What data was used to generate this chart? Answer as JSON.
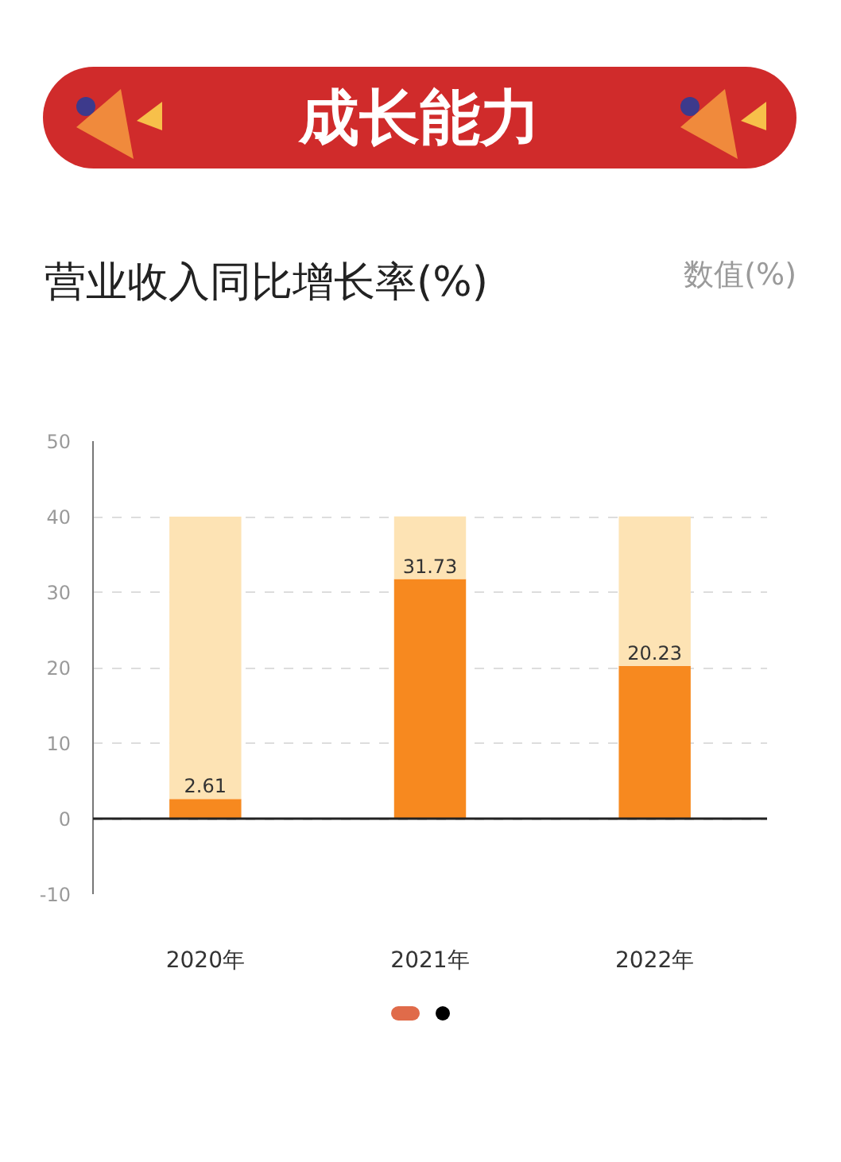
{
  "chart_data": {
    "type": "bar",
    "title": "成长能力",
    "subtitle": "营业收入同比增长率(%)",
    "ylabel": "数值(%)",
    "categories": [
      "2020年",
      "2021年",
      "2022年"
    ],
    "stacked": true,
    "series": [
      {
        "color": "#f7891f",
        "values": [
          2.61,
          31.73,
          20.23
        ],
        "value_labels": [
          "2.61",
          "31.73",
          "20.23"
        ]
      },
      {
        "color": "#fde3b4",
        "values": [
          37.4,
          8.3,
          19.8
        ]
      }
    ],
    "ylim": [
      -10,
      50
    ],
    "yticks": [
      -10,
      0,
      10,
      20,
      30,
      40,
      50
    ],
    "grid": "y"
  }
}
